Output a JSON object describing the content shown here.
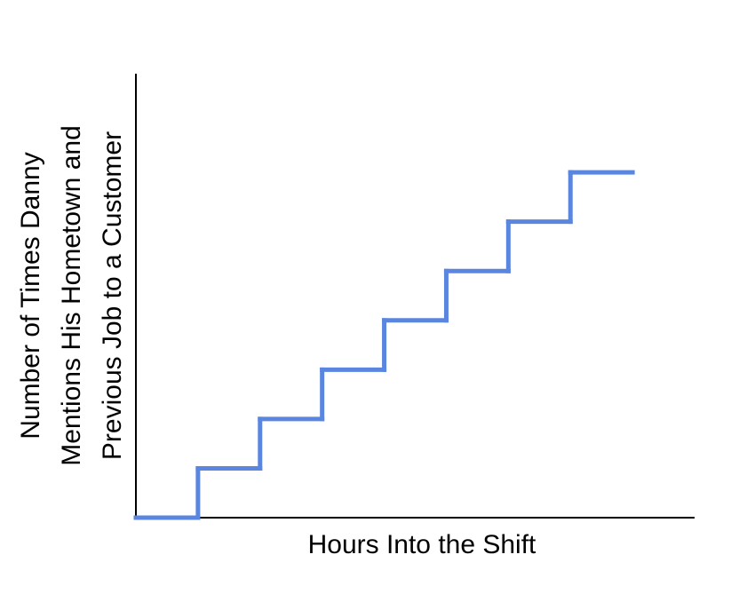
{
  "chart_data": {
    "type": "step",
    "xlabel": "Hours Into the Shift",
    "ylabel": [
      "Number of Times Danny",
      "Mentions His Hometown and",
      "Previous Job to a Customer"
    ],
    "x": [
      0,
      1,
      2,
      3,
      4,
      5,
      6,
      7,
      8
    ],
    "values": [
      0,
      1,
      2,
      3,
      4,
      5,
      6,
      7,
      7
    ],
    "color": "#5b86e0",
    "xlim": [
      0,
      9
    ],
    "ylim": [
      0,
      9
    ]
  }
}
